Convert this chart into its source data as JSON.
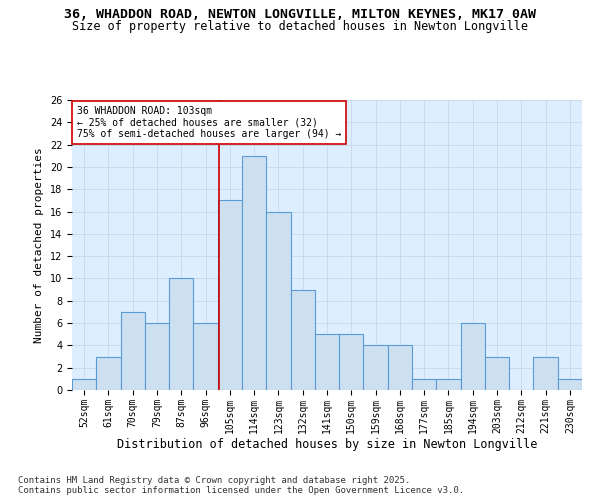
{
  "title_line1": "36, WHADDON ROAD, NEWTON LONGVILLE, MILTON KEYNES, MK17 0AW",
  "title_line2": "Size of property relative to detached houses in Newton Longville",
  "xlabel": "Distribution of detached houses by size in Newton Longville",
  "ylabel": "Number of detached properties",
  "categories": [
    "52sqm",
    "61sqm",
    "70sqm",
    "79sqm",
    "87sqm",
    "96sqm",
    "105sqm",
    "114sqm",
    "123sqm",
    "132sqm",
    "141sqm",
    "150sqm",
    "159sqm",
    "168sqm",
    "177sqm",
    "185sqm",
    "194sqm",
    "203sqm",
    "212sqm",
    "221sqm",
    "230sqm"
  ],
  "values": [
    1,
    3,
    7,
    6,
    10,
    6,
    17,
    21,
    16,
    9,
    5,
    5,
    4,
    4,
    1,
    1,
    6,
    3,
    0,
    3,
    1
  ],
  "bar_color": "#cce0f0",
  "bar_edge_color": "#5b9bd5",
  "annotation_text": "36 WHADDON ROAD: 103sqm\n← 25% of detached houses are smaller (32)\n75% of semi-detached houses are larger (94) →",
  "annotation_box_color": "#ffffff",
  "annotation_box_edge": "#cc0000",
  "vline_color": "#cc0000",
  "vline_x": 5.55,
  "ylim": [
    0,
    26
  ],
  "yticks": [
    0,
    2,
    4,
    6,
    8,
    10,
    12,
    14,
    16,
    18,
    20,
    22,
    24,
    26
  ],
  "grid_color": "#c8d8e8",
  "plot_bg_color": "#ddeeff",
  "fig_bg_color": "#ffffff",
  "footer_text": "Contains HM Land Registry data © Crown copyright and database right 2025.\nContains public sector information licensed under the Open Government Licence v3.0.",
  "title_fontsize": 9.5,
  "subtitle_fontsize": 8.5,
  "ylabel_fontsize": 8,
  "xlabel_fontsize": 8.5,
  "tick_fontsize": 7,
  "annotation_fontsize": 7,
  "footer_fontsize": 6.5
}
